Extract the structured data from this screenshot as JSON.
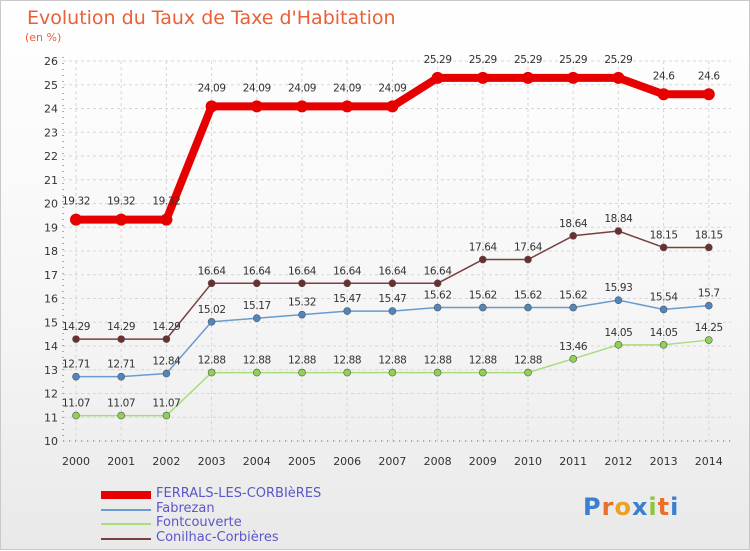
{
  "header": {
    "title": "Evolution du Taux de Taxe d'Habitation",
    "unit": "(en %)"
  },
  "logo": {
    "text": "Proxiti",
    "letters": [
      "P",
      "r",
      "o",
      "x",
      "i",
      "t",
      "i"
    ]
  },
  "chart_data": {
    "type": "line",
    "title": "Evolution du Taux de Taxe d'Habitation",
    "ylabel": "(en %)",
    "xlabel": "",
    "x": [
      "2000",
      "2001",
      "2002",
      "2003",
      "2004",
      "2005",
      "2006",
      "2007",
      "2008",
      "2009",
      "2010",
      "2011",
      "2012",
      "2013",
      "2014"
    ],
    "ylim": [
      10,
      26
    ],
    "yticks": [
      10,
      11,
      12,
      13,
      14,
      15,
      16,
      17,
      18,
      19,
      20,
      21,
      22,
      23,
      24,
      25,
      26
    ],
    "grid": true,
    "legend_position": "bottom-left",
    "series": [
      {
        "name": "FERRALS-LES-CORBIèRES",
        "color": "#e60000",
        "marker_color": "#e60000",
        "width": 8,
        "values": [
          19.32,
          19.32,
          19.32,
          24.09,
          24.09,
          24.09,
          24.09,
          24.09,
          25.29,
          25.29,
          25.29,
          25.29,
          25.29,
          24.6,
          24.6
        ],
        "labels": [
          "19.32",
          "19.32",
          "19.32",
          "24.09",
          "24.09",
          "24.09",
          "24.09",
          "24.09",
          "25.29",
          "25.29",
          "25.29",
          "25.29",
          "25.29",
          "24.6",
          "24.6"
        ]
      },
      {
        "name": "Fabrezan",
        "color": "#6a9bcc",
        "marker_color": "#4f86c0",
        "width": 1.5,
        "values": [
          12.71,
          12.71,
          12.84,
          15.02,
          15.17,
          15.32,
          15.47,
          15.47,
          15.62,
          15.62,
          15.62,
          15.62,
          15.93,
          15.54,
          15.7
        ],
        "labels": [
          "12.71",
          "12.71",
          "12.84",
          "15.02",
          "15.17",
          "15.32",
          "15.47",
          "15.47",
          "15.62",
          "15.62",
          "15.62",
          "15.62",
          "15.93",
          "15.54",
          "15.7"
        ]
      },
      {
        "name": "Fontcouverte",
        "color": "#a9dc7a",
        "marker_color": "#8fd152",
        "width": 1.5,
        "values": [
          11.07,
          11.07,
          11.07,
          12.88,
          12.88,
          12.88,
          12.88,
          12.88,
          12.88,
          12.88,
          12.88,
          13.46,
          14.05,
          14.05,
          14.25
        ],
        "labels": [
          "11.07",
          "11.07",
          "11.07",
          "12.88",
          "12.88",
          "12.88",
          "12.88",
          "12.88",
          "12.88",
          "12.88",
          "12.88",
          "13.46",
          "14.05",
          "14.05",
          "14.25"
        ]
      },
      {
        "name": "Conilhac-Corbières",
        "color": "#7b3f3f",
        "marker_color": "#6e2e2e",
        "width": 1.5,
        "values": [
          14.29,
          14.29,
          14.29,
          16.64,
          16.64,
          16.64,
          16.64,
          16.64,
          16.64,
          17.64,
          17.64,
          18.64,
          18.84,
          18.15,
          18.15
        ],
        "labels": [
          "14.29",
          "14.29",
          "14.29",
          "16.64",
          "16.64",
          "16.64",
          "16.64",
          "16.64",
          "16.64",
          "17.64",
          "17.64",
          "18.64",
          "18.84",
          "18.15",
          "18.15"
        ]
      }
    ]
  }
}
